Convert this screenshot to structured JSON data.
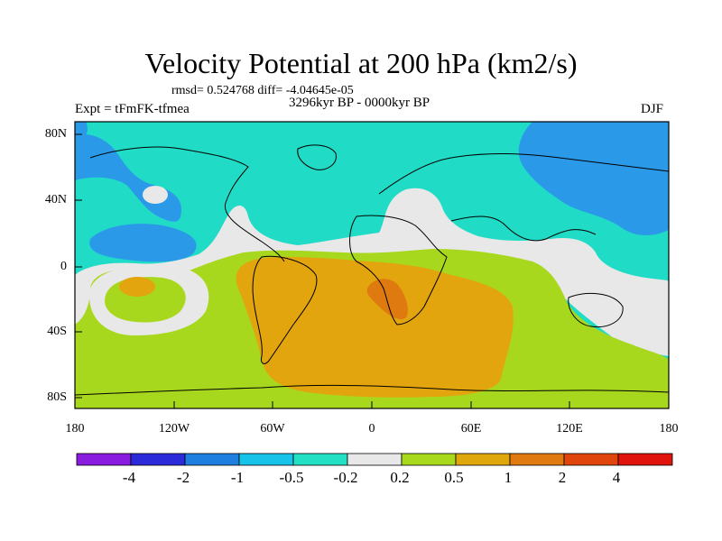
{
  "title": "Velocity Potential at 200 hPa (km2/s)",
  "stats": "rmsd= 0.524768 diff= -4.04645e-05",
  "subtitle": "3296kyr BP - 0000kyr BP",
  "experiment": "Expt = tFmFK-tfmea",
  "season": "DJF",
  "map": {
    "type": "filled-contour world map",
    "lat_range": [
      -90,
      90
    ],
    "lon_range": [
      -180,
      180
    ],
    "lat_ticks": [
      "80N",
      "40N",
      "0",
      "40S",
      "80S"
    ],
    "lon_ticks": [
      "180",
      "120W",
      "60W",
      "0",
      "60E",
      "120E",
      "180"
    ]
  },
  "colorbar": {
    "labels": [
      "-4",
      "-2",
      "-1",
      "-0.5",
      "-0.2",
      "0.2",
      "0.5",
      "1",
      "2",
      "4"
    ],
    "colors": [
      "#8a1ce0",
      "#2b2bd9",
      "#1f7fe0",
      "#18c3ea",
      "#21e0c3",
      "#e8e8e8",
      "#a9d91c",
      "#e0a70c",
      "#e0790f",
      "#e0460c",
      "#e0140c"
    ]
  },
  "field_colors": {
    "neg_0_5_to_1": "#2a9ae8",
    "neg_0_2_to_0_5": "#20dcc6",
    "neutral": "#e8e8e8",
    "pos_0_2_to_0_5": "#a8d81e",
    "pos_0_5_to_1": "#e2a50e",
    "pos_1_to_2": "#df7a10",
    "neg_1_to_2": "#2a93e6"
  }
}
